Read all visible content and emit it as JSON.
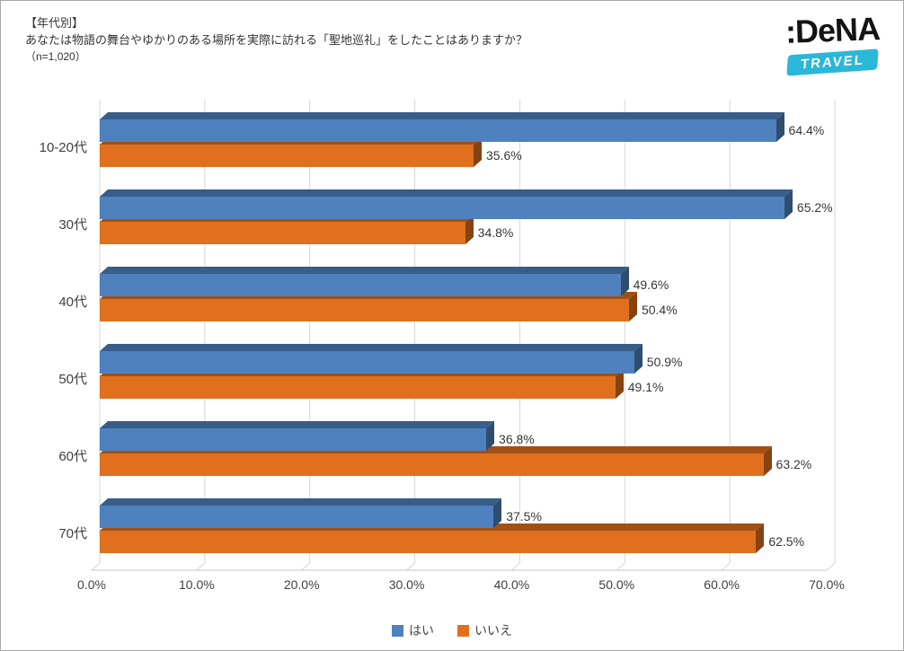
{
  "header": {
    "line1": "【年代別】",
    "line2": "あなたは物語の舞台やゆかりのある場所を実際に訪れる「聖地巡礼」をしたことはありますか？",
    "line3": "（n=1,020）"
  },
  "logo": {
    "brand": ":DeNA",
    "sub": "TRAVEL",
    "badge_color": "#2bb7d8",
    "text_color": "#141414"
  },
  "chart_data": {
    "type": "bar",
    "orientation": "horizontal",
    "style_3d": true,
    "categories": [
      "10-20代",
      "30代",
      "40代",
      "50代",
      "60代",
      "70代"
    ],
    "series": [
      {
        "name": "はい",
        "key": "yes",
        "color": "#4e81bd",
        "values": [
          64.4,
          65.2,
          49.6,
          50.9,
          36.8,
          37.5
        ]
      },
      {
        "name": "いいえ",
        "key": "no",
        "color": "#e0701e",
        "values": [
          35.6,
          34.8,
          50.4,
          49.1,
          63.2,
          62.5
        ]
      }
    ],
    "value_suffix": "%",
    "x_axis": {
      "min": 0,
      "max": 70,
      "tick_step": 10,
      "tick_labels": [
        "0.0%",
        "10.0%",
        "20.0%",
        "30.0%",
        "40.0%",
        "50.0%",
        "60.0%",
        "70.0%"
      ]
    },
    "grid": true,
    "legend_position": "bottom"
  }
}
